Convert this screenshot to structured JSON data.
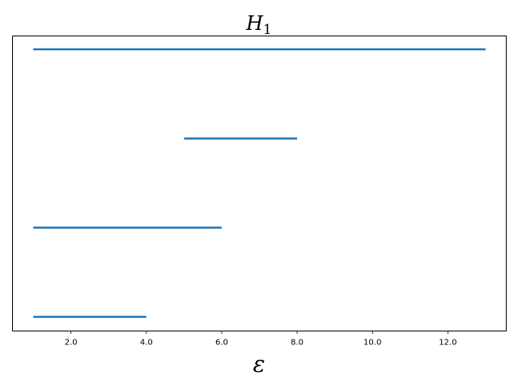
{
  "chart_data": {
    "type": "barcode",
    "title": {
      "main": "H",
      "subscript": "1"
    },
    "xlabel": "ε",
    "ylabel": "",
    "xlim": [
      0.45,
      13.55
    ],
    "x_ticks": [
      2.0,
      4.0,
      6.0,
      8.0,
      10.0,
      12.0
    ],
    "x_tick_labels": [
      "2.0",
      "4.0",
      "6.0",
      "8.0",
      "10.0",
      "12.0"
    ],
    "y_ticks_visible": false,
    "grid": false,
    "bar_color": "#1f77b4",
    "intervals": [
      {
        "birth": 1.0,
        "death": 4.0
      },
      {
        "birth": 1.0,
        "death": 6.0
      },
      {
        "birth": 5.0,
        "death": 8.0
      },
      {
        "birth": 1.0,
        "death": 13.0
      }
    ]
  }
}
